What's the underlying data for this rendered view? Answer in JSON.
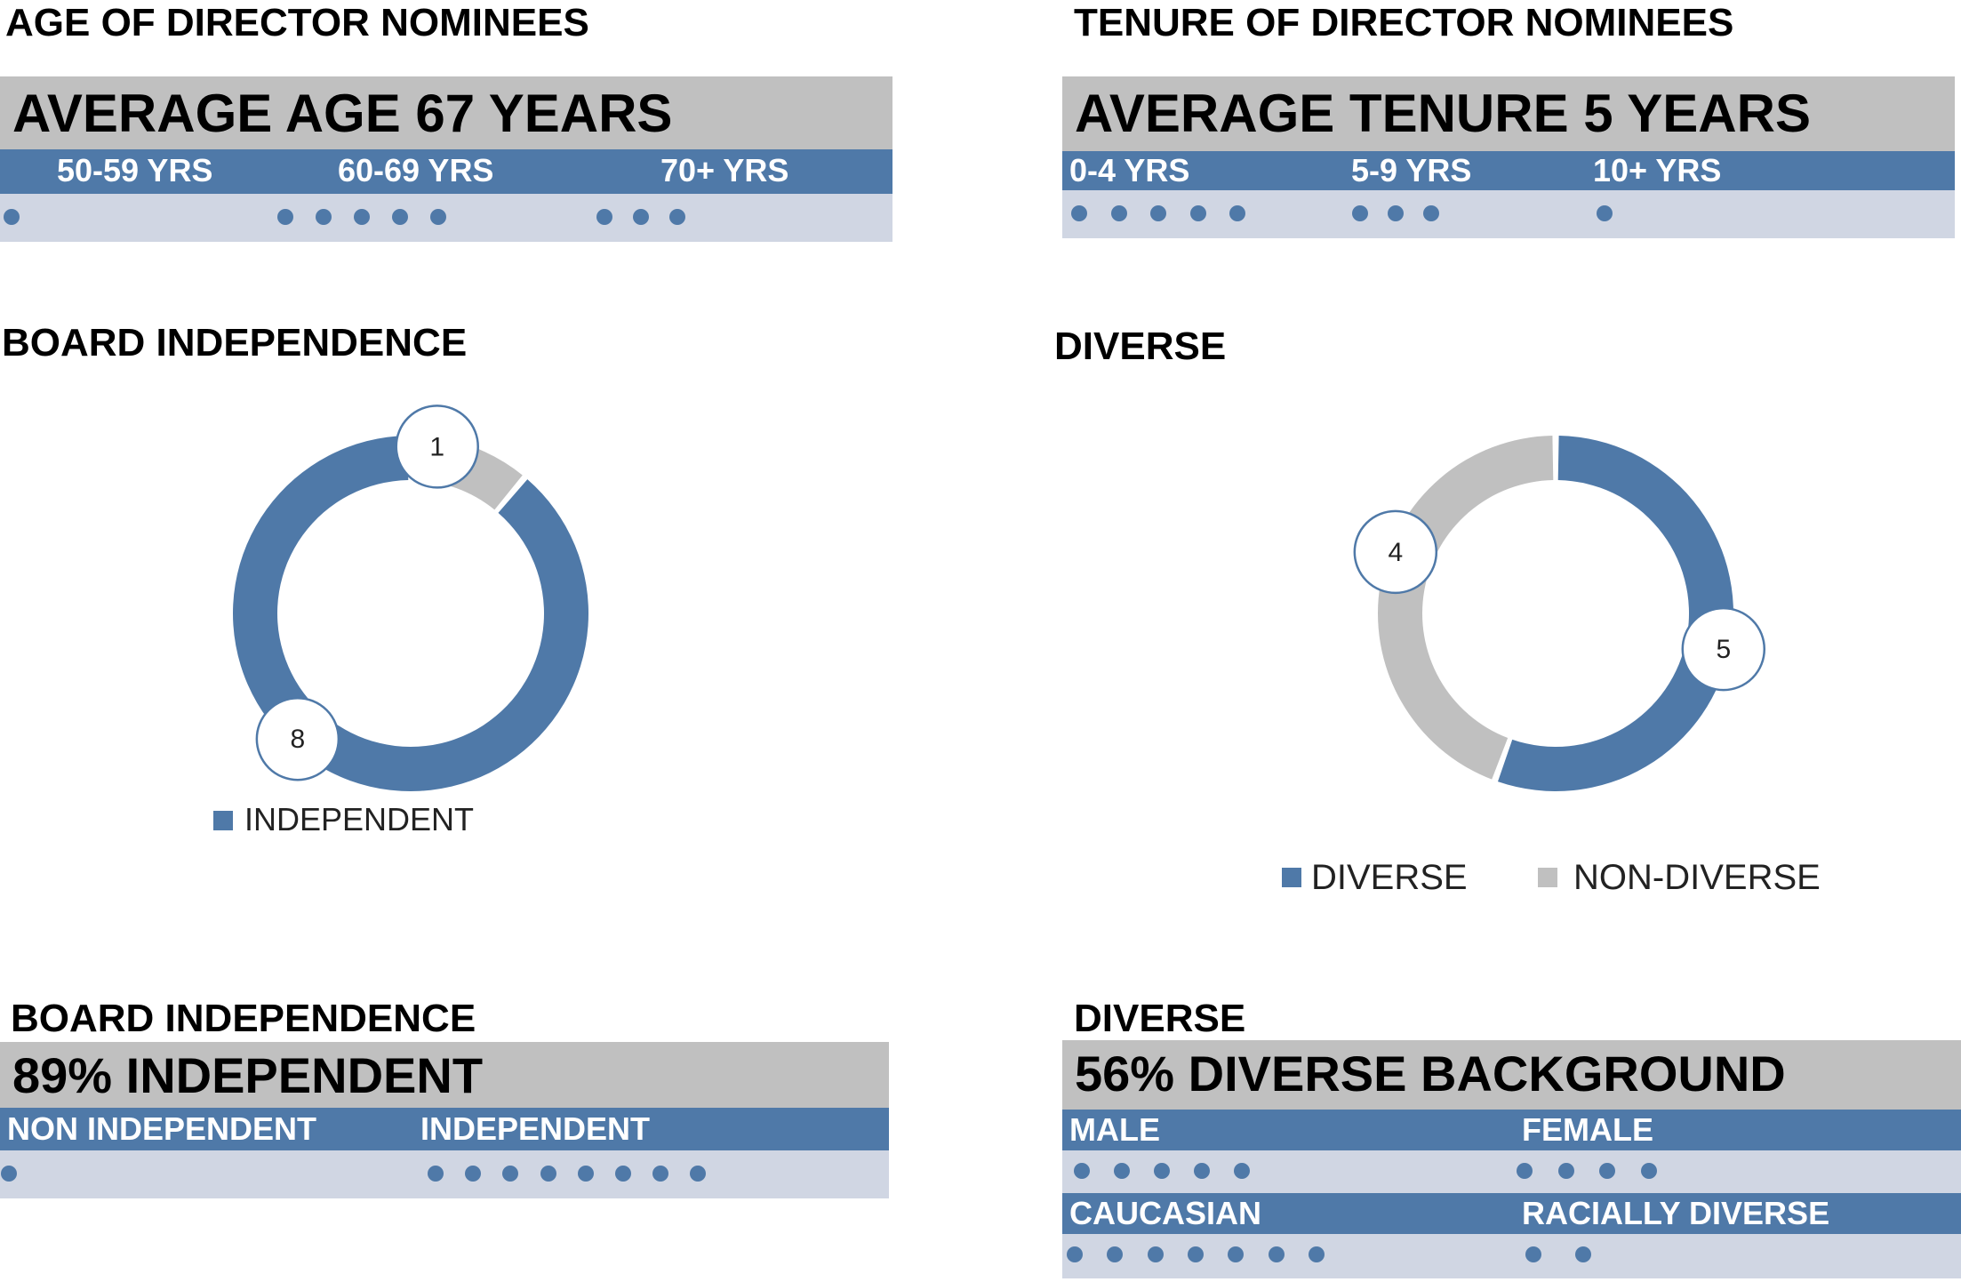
{
  "age": {
    "title": "AGE OF DIRECTOR NOMINEES",
    "headline": "AVERAGE AGE 67 YEARS",
    "groups": [
      {
        "label": "50-59 YRS",
        "count": 1
      },
      {
        "label": "60-69 YRS",
        "count": 5
      },
      {
        "label": "70+ YRS",
        "count": 3
      }
    ]
  },
  "tenure": {
    "title": "TENURE OF DIRECTOR NOMINEES",
    "headline": "AVERAGE TENURE 5 YEARS",
    "groups": [
      {
        "label": "0-4 YRS",
        "count": 5
      },
      {
        "label": "5-9 YRS",
        "count": 3
      },
      {
        "label": "10+ YRS",
        "count": 1
      }
    ]
  },
  "independence_chart": {
    "title": "BOARD INDEPENDENCE",
    "legend": "INDEPENDENT"
  },
  "diverse_chart": {
    "title": "DIVERSE",
    "legend": [
      "DIVERSE",
      "NON-DIVERSE"
    ]
  },
  "independence_summary": {
    "title": "BOARD INDEPENDENCE",
    "headline": "89% INDEPENDENT",
    "groups": [
      {
        "label": "NON INDEPENDENT",
        "count": 1
      },
      {
        "label": "INDEPENDENT",
        "count": 8
      }
    ]
  },
  "diverse_summary": {
    "title": "DIVERSE",
    "headline": "56% DIVERSE BACKGROUND",
    "row1": [
      {
        "label": "MALE",
        "count": 5
      },
      {
        "label": "FEMALE",
        "count": 4
      }
    ],
    "row2": [
      {
        "label": "CAUCASIAN",
        "count": 7
      },
      {
        "label": "RACIALLY DIVERSE",
        "count": 2
      }
    ]
  },
  "colors": {
    "blue": "#4f79a8",
    "gray": "#c0c0c0",
    "light": "#d0d6e3"
  },
  "chart_data": [
    {
      "type": "pie",
      "title": "BOARD INDEPENDENCE",
      "categories": [
        "INDEPENDENT",
        "NON INDEPENDENT"
      ],
      "values": [
        8,
        1
      ],
      "data_labels": [
        "8",
        "1"
      ],
      "legend": [
        "INDEPENDENT"
      ],
      "colors": [
        "#4f79a8",
        "#c0c0c0"
      ]
    },
    {
      "type": "pie",
      "title": "DIVERSE",
      "categories": [
        "DIVERSE",
        "NON-DIVERSE"
      ],
      "values": [
        5,
        4
      ],
      "data_labels": [
        "5",
        "4"
      ],
      "legend": [
        "DIVERSE",
        "NON-DIVERSE"
      ],
      "colors": [
        "#4f79a8",
        "#c0c0c0"
      ]
    }
  ]
}
